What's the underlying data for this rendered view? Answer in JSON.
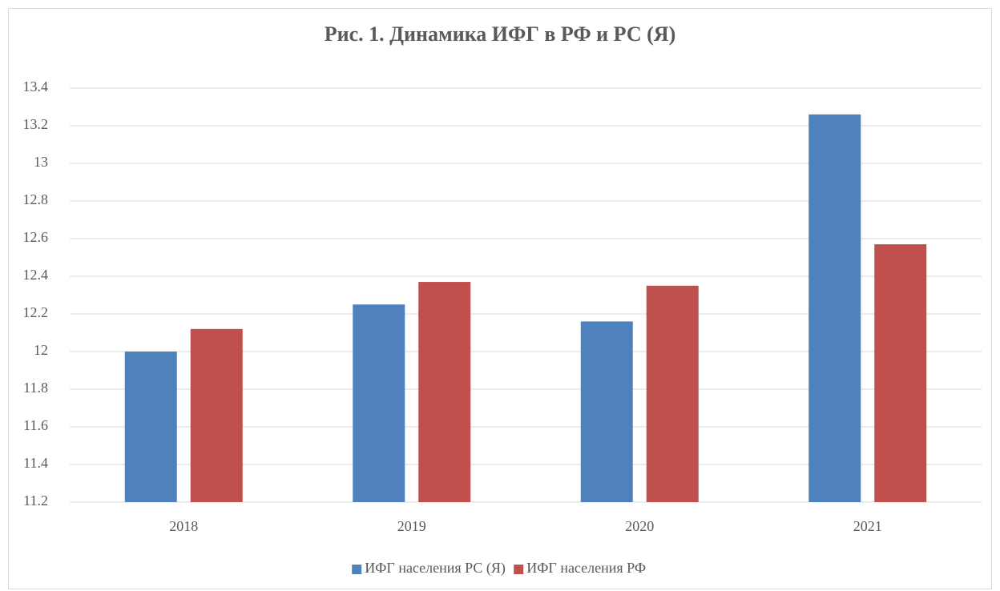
{
  "chart_data": {
    "type": "bar",
    "title": "Рис. 1. Динамика ИФГ в РФ и РС (Я)",
    "categories": [
      "2018",
      "2019",
      "2020",
      "2021"
    ],
    "series": [
      {
        "name": "ИФГ населения РС (Я)",
        "color": "#4f81bd",
        "values": [
          12.0,
          12.25,
          12.16,
          13.26
        ]
      },
      {
        "name": "ИФГ населения РФ",
        "color": "#c0504d",
        "values": [
          12.12,
          12.37,
          12.35,
          12.57
        ]
      }
    ],
    "ylim": [
      11.2,
      13.4
    ],
    "yticks": [
      11.2,
      11.4,
      11.6,
      11.8,
      12,
      12.2,
      12.4,
      12.6,
      12.8,
      13,
      13.2,
      13.4
    ],
    "grid": true,
    "legend": "bottom"
  }
}
